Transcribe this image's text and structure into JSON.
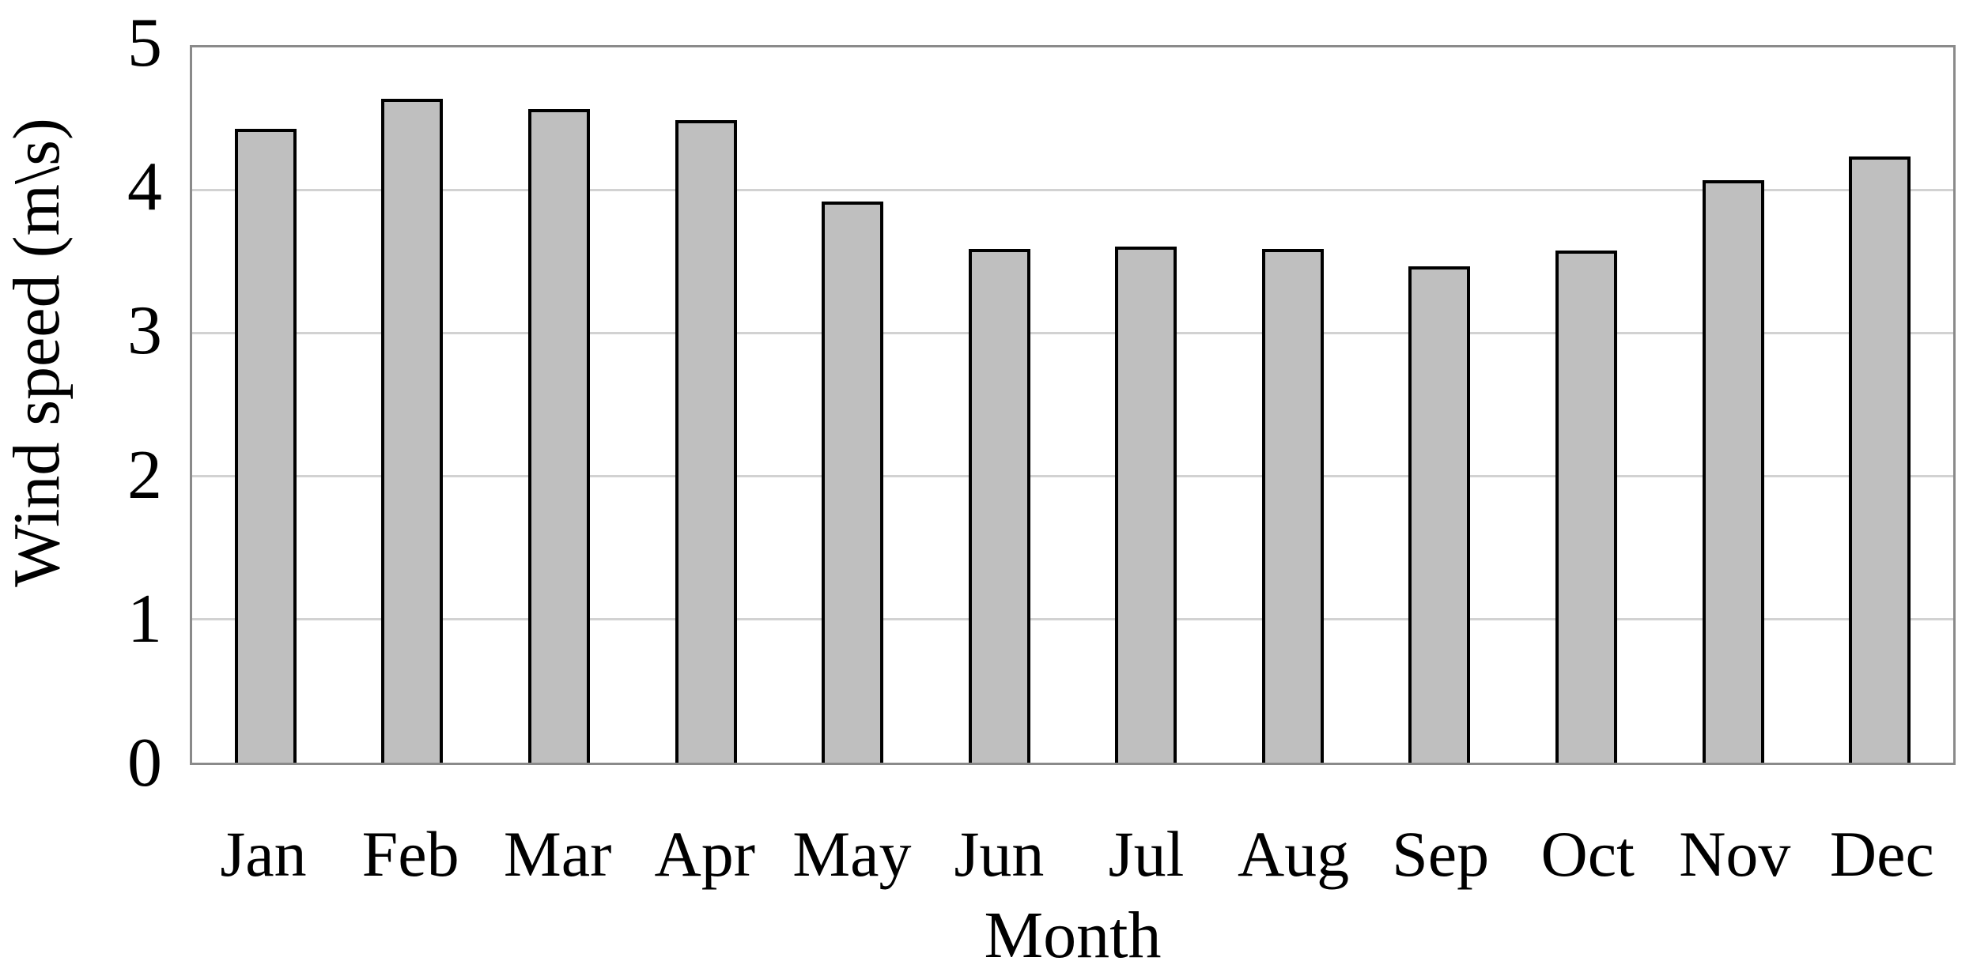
{
  "chart_data": {
    "type": "bar",
    "title": "",
    "categories": [
      "Jan",
      "Feb",
      "Mar",
      "Apr",
      "May",
      "Jun",
      "Jul",
      "Aug",
      "Sep",
      "Oct",
      "Nov",
      "Dec"
    ],
    "values": [
      4.43,
      4.64,
      4.57,
      4.49,
      3.92,
      3.59,
      3.61,
      3.59,
      3.47,
      3.58,
      4.07,
      4.24
    ],
    "xlabel": "Month",
    "ylabel": "Wind speed (m\\s)",
    "ylim": [
      0,
      5
    ],
    "yticks": [
      0,
      1,
      2,
      3,
      4,
      5
    ],
    "grid": "horizontal-major",
    "legend_position": "none",
    "colors": {
      "bar_fill": "#bfbfbf",
      "bar_border": "#000000",
      "gridline": "#d2d2d2",
      "plot_frame": "#8a8a8a",
      "text": "#000000",
      "background": "#ffffff"
    }
  }
}
